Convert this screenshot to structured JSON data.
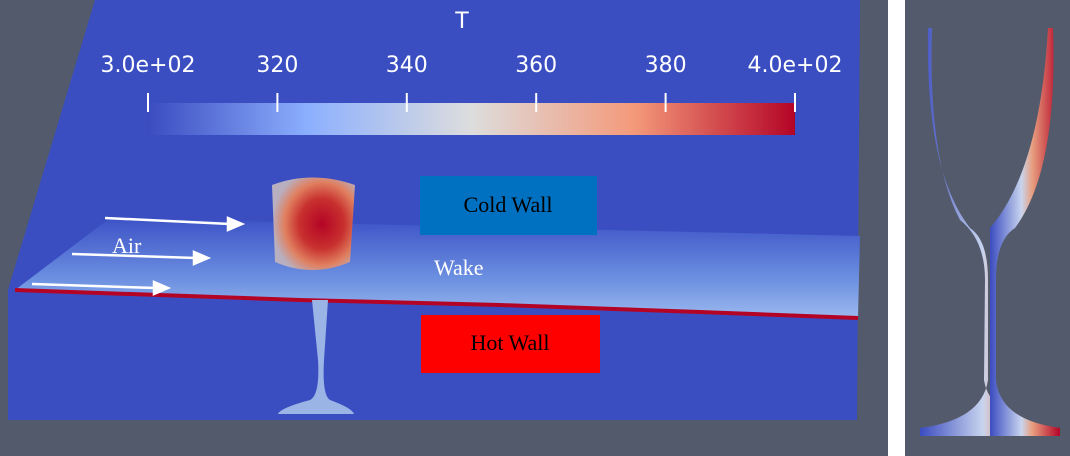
{
  "colorbar": {
    "title": "T",
    "range": [
      300,
      400
    ],
    "ticks": [
      {
        "value": 300,
        "label": "3.0e+02"
      },
      320,
      340,
      360,
      380,
      {
        "value": 400,
        "label": "4.0e+02"
      }
    ]
  },
  "labels": {
    "cold_wall": "Cold Wall",
    "hot_wall": "Hot Wall",
    "air": "Air",
    "wake": "Wake"
  }
}
